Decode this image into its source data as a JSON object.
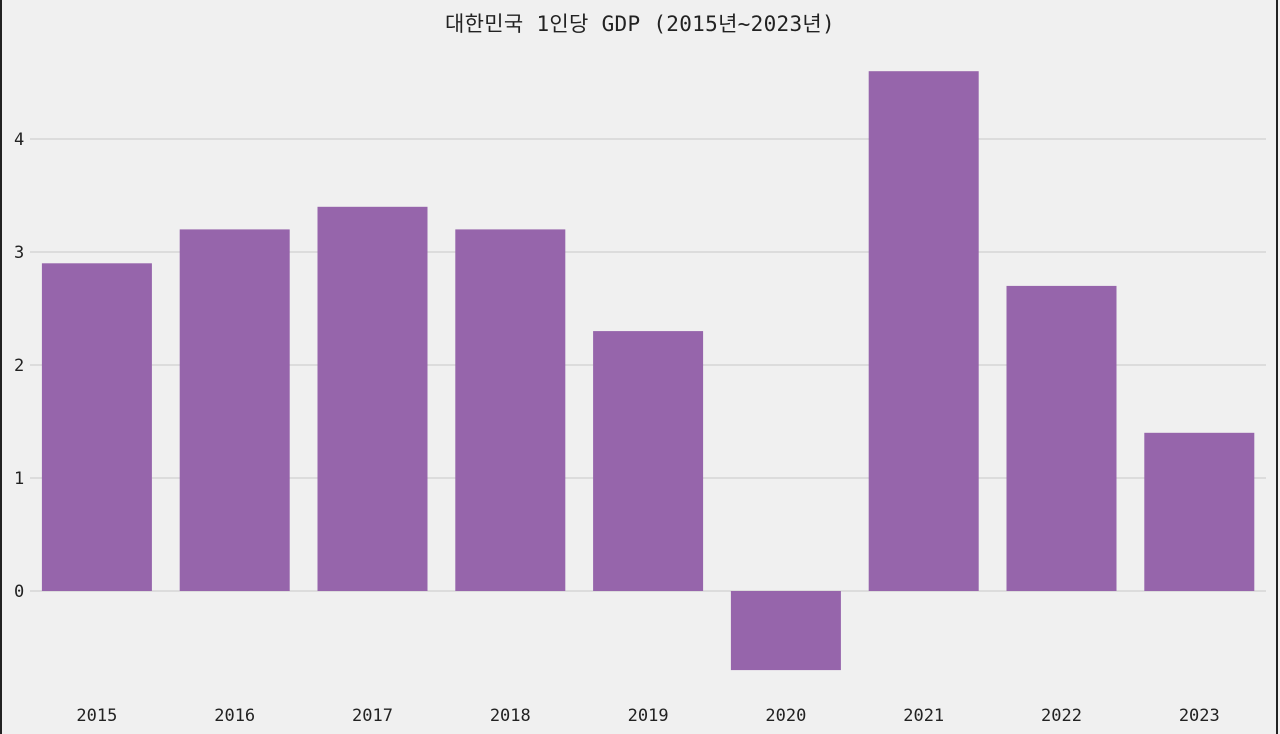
{
  "chart_data": {
    "type": "bar",
    "title": "대한민국 1인당 GDP (2015년~2023년)",
    "xlabel": "",
    "ylabel": "",
    "categories": [
      "2015",
      "2016",
      "2017",
      "2018",
      "2019",
      "2020",
      "2021",
      "2022",
      "2023"
    ],
    "values": [
      2.9,
      3.2,
      3.4,
      3.2,
      2.3,
      -0.7,
      4.6,
      2.7,
      1.4
    ],
    "ylim": [
      -0.9,
      5.2
    ],
    "yticks": [
      "0",
      "1",
      "2",
      "3",
      "4"
    ],
    "grid": true,
    "legend": "none",
    "colors": {
      "bar": "#9665ab",
      "grid": "#cfcfcf",
      "background": "#f0f0f0",
      "text": "#222222"
    }
  }
}
